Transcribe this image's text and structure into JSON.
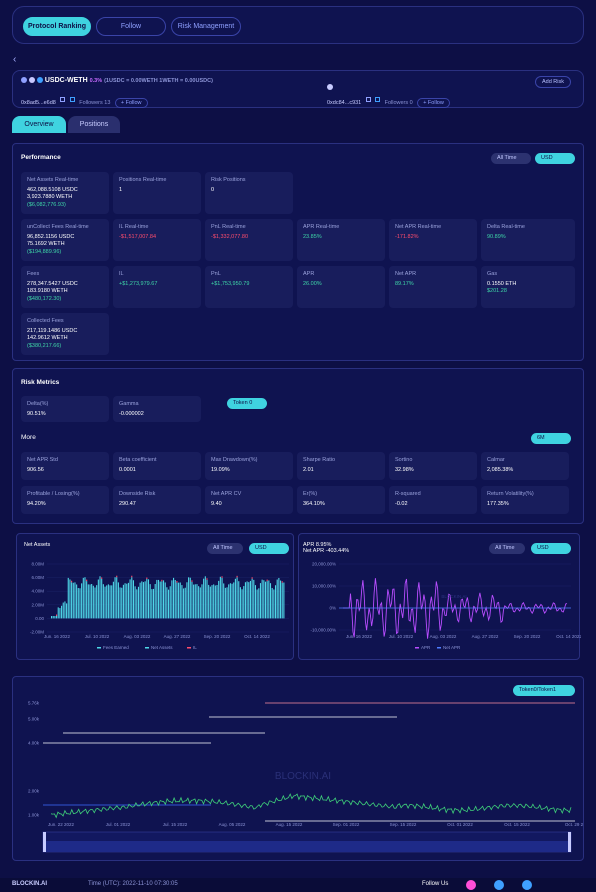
{
  "nav": {
    "tabs": [
      "Protocol Ranking",
      "Follow",
      "Risk Management"
    ],
    "active": 0
  },
  "pool": {
    "name": "USDC-WETH",
    "fee": "0.3%",
    "ratio": "(1USDC = 0.00WETH   1WETH = 0.00USDC)",
    "addr1": "0x8ad5...e6d8",
    "followers1": "Followers  13",
    "follow_label": "+ Follow",
    "addr2": "0xdc84...c931",
    "followers2": "Followers  0",
    "add_risk": "Add Risk"
  },
  "tabs": [
    "Overview",
    "Positions"
  ],
  "performance": {
    "title": "Performance",
    "time_sel": "All Time",
    "unit_sel": "USD",
    "net_assets": {
      "label": "Net Assets Real-time",
      "l1": "462,088.5108 USDC",
      "l2": "3,923.7880 WETH",
      "l3": "($6,082,776.93)"
    },
    "positions_rt": {
      "label": "Positions Real-time",
      "value": "1"
    },
    "risk_positions": {
      "label": "Risk Positions",
      "value": "0"
    },
    "uncollect": {
      "label": "unCollect Fees Real-time",
      "l1": "96,852.1156 USDC",
      "l2": "75.1692 WETH",
      "l3": "($194,889.96)"
    },
    "il_rt": {
      "label": "IL Real-time",
      "value": "-$1,517,007.84"
    },
    "pnl_rt": {
      "label": "PnL Real-time",
      "value": "-$1,332,077.80"
    },
    "apr_rt": {
      "label": "APR Real-time",
      "value": "23.85%"
    },
    "netapr_rt": {
      "label": "Net APR Real-time",
      "value": "-171.82%"
    },
    "delta_rt": {
      "label": "Delta Real-time",
      "value": "90.89%"
    },
    "fees": {
      "label": "Fees",
      "l1": "278,347.5427 USDC",
      "l2": "183.9180 WETH",
      "l3": "($480,172.30)"
    },
    "il": {
      "label": "IL",
      "value": "+$1,273,979.67"
    },
    "pnl": {
      "label": "PnL",
      "value": "+$1,753,950.79"
    },
    "apr": {
      "label": "APR",
      "value": "26.00%"
    },
    "netapr": {
      "label": "Net APR",
      "value": "89.17%"
    },
    "gas": {
      "label": "Gas",
      "l1": "0.1550 ETH",
      "l2": "$201.28"
    },
    "collected": {
      "label": "Collected Fees",
      "l1": "217,119.1486 USDC",
      "l2": "142.9612 WETH",
      "l3": "($380,217.66)"
    }
  },
  "risk": {
    "title": "Risk Metrics",
    "token_sel": "Token 0",
    "delta": {
      "label": "Delta(%)",
      "value": "90.51%"
    },
    "gamma": {
      "label": "Gamma",
      "value": "-0.000002"
    },
    "more": "More",
    "period_sel": "6M",
    "m": [
      {
        "label": "Net APR Std",
        "value": "906.56"
      },
      {
        "label": "Beta coefficient",
        "value": "0.0001"
      },
      {
        "label": "Max Drawdown(%)",
        "value": "19.09%"
      },
      {
        "label": "Sharpe Ratio",
        "value": "2.01"
      },
      {
        "label": "Sortino",
        "value": "32.98%"
      },
      {
        "label": "Calmar",
        "value": "2,085.38%"
      },
      {
        "label": "Profitable / Losing(%)",
        "value": "94.20%"
      },
      {
        "label": "Downside Risk",
        "value": "290.47"
      },
      {
        "label": "Net APR CV",
        "value": "9.40"
      },
      {
        "label": "Er(%)",
        "value": "364.10%"
      },
      {
        "label": "R-squared",
        "value": "-0.02"
      },
      {
        "label": "Return Volatility(%)",
        "value": "177.35%"
      }
    ]
  },
  "chart1": {
    "title": "Net Assets",
    "time_sel": "All Time",
    "unit_sel": "USD",
    "yticks": [
      "8.00M",
      "6.00M",
      "4.00M",
      "2.00M",
      "0.00",
      "-2.00M"
    ],
    "xticks": [
      "Jun. 16 2022",
      "Jul. 10 2022",
      "Aug. 03 2022",
      "Aug. 27 2022",
      "Sep. 20 2022",
      "Oct. 14 2022"
    ],
    "legend": [
      "Fees Earned",
      "Net Assets",
      "IL"
    ],
    "colors": {
      "bar": "#4fd8e8",
      "fee": "#ff4d6d"
    }
  },
  "chart2": {
    "apr_label": "APR",
    "apr_value": "8.95%",
    "netapr_label": "Net APR",
    "netapr_value": "-403.44%",
    "time_sel": "All Time",
    "unit_sel": "USD",
    "yticks": [
      "20,000.00%",
      "10,000.00%",
      "0%",
      "-10,000.00%"
    ],
    "xticks": [
      "Jun. 16 2022",
      "Jul. 10 2022",
      "Aug. 03 2022",
      "Aug. 27 2022",
      "Sep. 20 2022",
      "Oct. 14 2022"
    ],
    "legend": [
      "APR",
      "Net APR"
    ],
    "colors": {
      "apr": "#b84dff",
      "netapr": "#4f7dff"
    }
  },
  "chart3": {
    "token_sel": "Token0/Token1",
    "yticks": [
      "5.76k",
      "5.00k",
      "4.00k",
      "2.00k",
      "1.00k"
    ],
    "xticks": [
      "Jun. 22 2022",
      "Jul. 01 2022",
      "Jul. 15 2022",
      "Aug. 05 2022",
      "Aug. 15 2022",
      "Sep. 01 2022",
      "Sep. 15 2022",
      "Oct. 01 2022",
      "Oct. 15 2022",
      "Oct. 29 2"
    ],
    "watermark": "BLOCKIN.AI",
    "colors": {
      "price": "#3fd17a"
    }
  },
  "footer": {
    "brand": "BLOCKIN.AI",
    "time": "Time (UTC): 2022-11-10 07:30:05",
    "follow": "Follow Us"
  }
}
